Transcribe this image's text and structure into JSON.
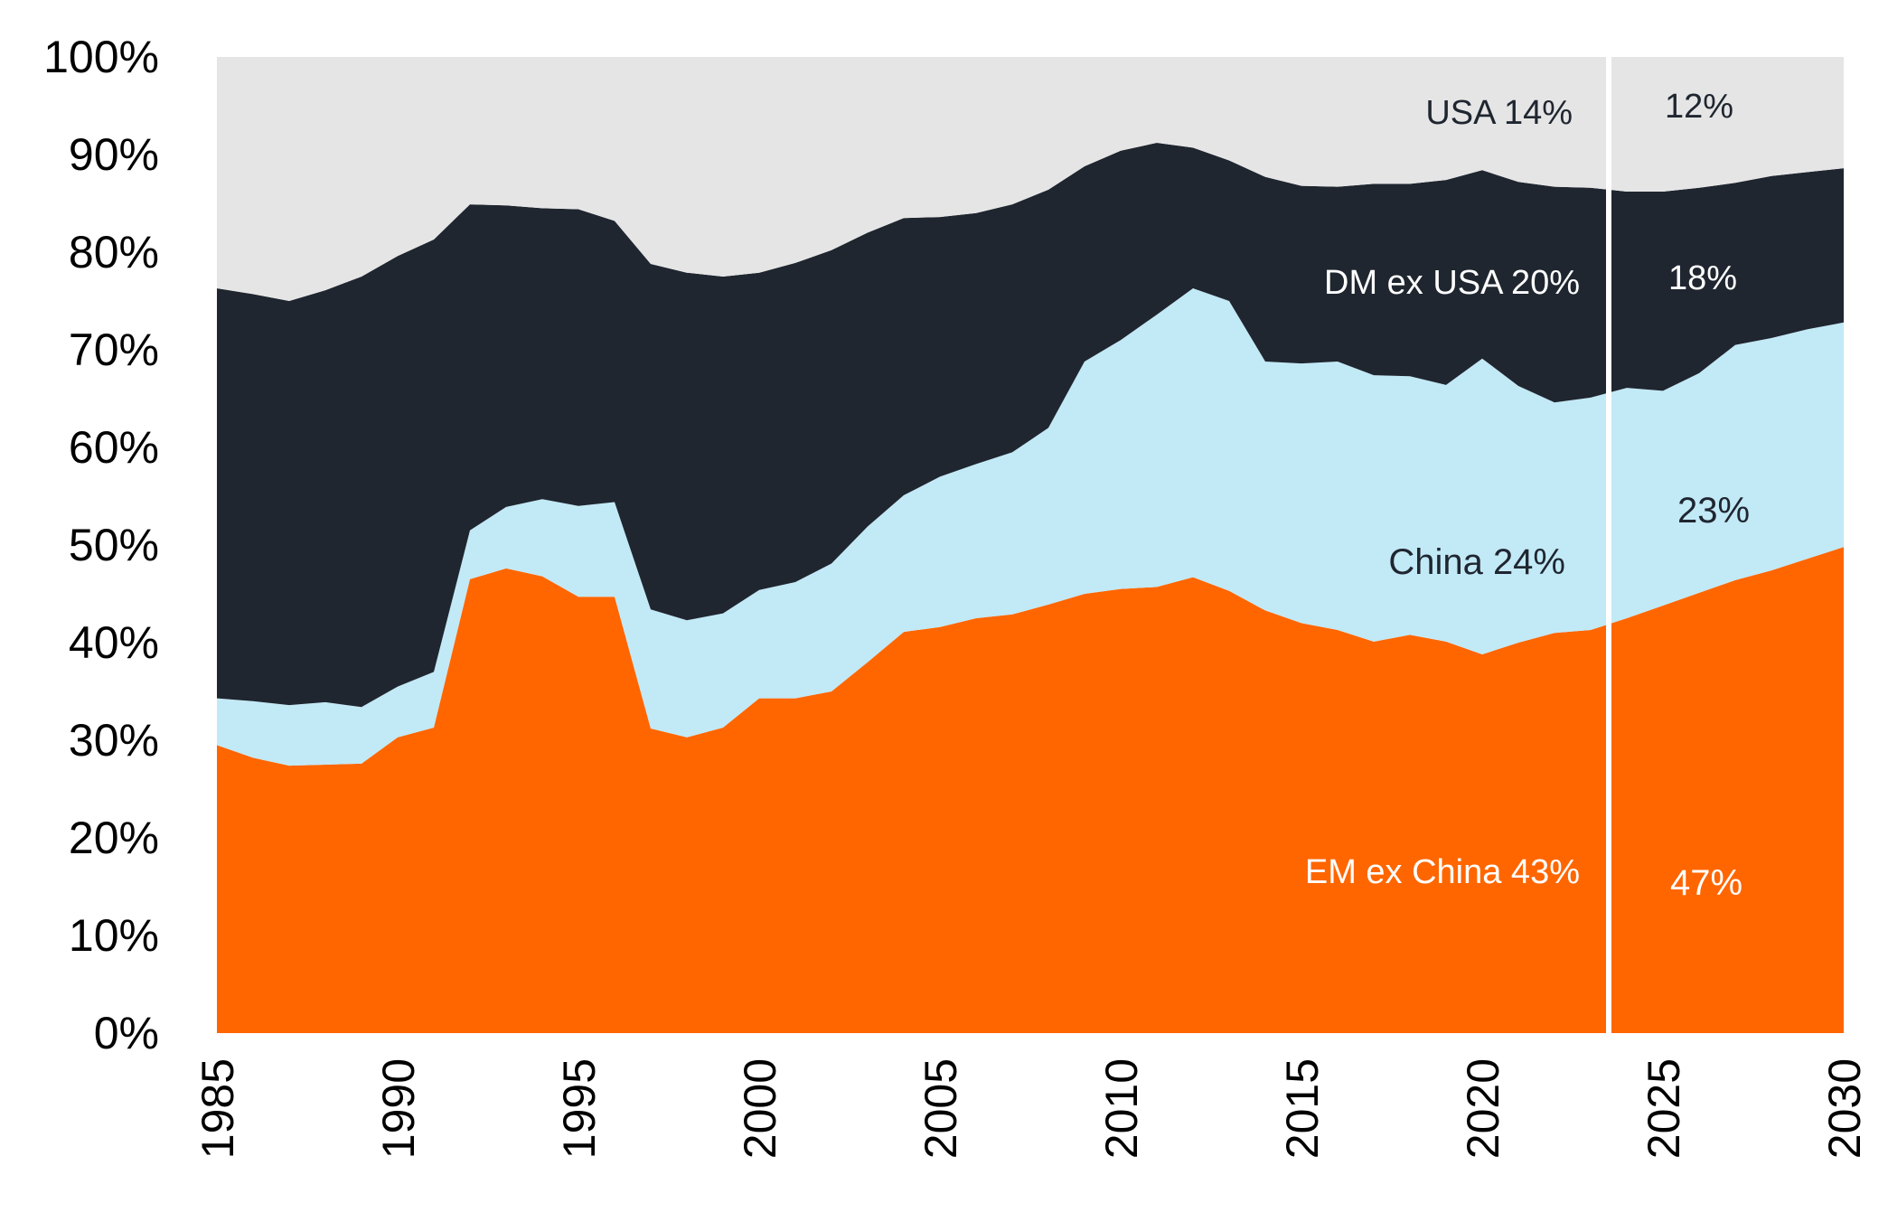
{
  "chart_data": {
    "type": "area",
    "stacked": true,
    "title": "",
    "xlabel": "",
    "ylabel": "",
    "xlim": [
      1985,
      2030
    ],
    "ylim": [
      0,
      100
    ],
    "y_ticks": [
      "0%",
      "10%",
      "20%",
      "30%",
      "40%",
      "50%",
      "60%",
      "70%",
      "80%",
      "90%",
      "100%"
    ],
    "x_ticks": [
      "1985",
      "1990",
      "1995",
      "2000",
      "2005",
      "2010",
      "2015",
      "2020",
      "2025",
      "2030"
    ],
    "forecast_divider_x": 2023.5,
    "x": [
      1985,
      1986,
      1987,
      1988,
      1989,
      1990,
      1991,
      1992,
      1993,
      1994,
      1995,
      1996,
      1997,
      1998,
      1999,
      2000,
      2001,
      2002,
      2003,
      2004,
      2005,
      2006,
      2007,
      2008,
      2009,
      2010,
      2011,
      2012,
      2013,
      2014,
      2015,
      2016,
      2017,
      2018,
      2019,
      2020,
      2021,
      2022,
      2023,
      2024,
      2025,
      2026,
      2027,
      2028,
      2029,
      2030
    ],
    "series": [
      {
        "name": "EM ex China",
        "color": "#ff6600",
        "values": [
          29.5,
          28.2,
          27.4,
          27.5,
          27.6,
          30.3,
          31.3,
          46.5,
          47.6,
          46.8,
          44.7,
          44.7,
          31.2,
          30.3,
          31.3,
          34.3,
          34.3,
          35.0,
          38.0,
          41.1,
          41.6,
          42.5,
          42.9,
          43.9,
          45.0,
          45.5,
          45.7,
          46.7,
          45.3,
          43.3,
          42.0,
          41.3,
          40.1,
          40.8,
          40.1,
          38.8,
          40.0,
          41.0,
          41.3,
          42.5,
          43.8,
          45.1,
          46.4,
          47.4,
          48.6,
          49.8
        ]
      },
      {
        "name": "China",
        "color": "#c2e9f6",
        "values": [
          4.8,
          5.8,
          6.2,
          6.4,
          5.8,
          5.2,
          5.7,
          5.0,
          6.3,
          7.9,
          9.3,
          9.7,
          12.2,
          12.0,
          11.7,
          11.1,
          11.9,
          13.1,
          13.9,
          14.0,
          15.4,
          15.8,
          16.6,
          18.1,
          23.8,
          25.5,
          27.9,
          29.6,
          29.7,
          25.5,
          26.6,
          27.5,
          27.3,
          26.5,
          26.3,
          30.3,
          26.3,
          23.6,
          23.8,
          23.6,
          22.0,
          22.5,
          24.1,
          23.8,
          23.5,
          23.0
        ]
      },
      {
        "name": "DM ex USA",
        "color": "#1f2630",
        "values": [
          42.0,
          41.7,
          41.4,
          42.2,
          44.1,
          44.1,
          44.3,
          33.4,
          30.9,
          29.8,
          30.4,
          28.8,
          35.4,
          35.6,
          34.5,
          32.5,
          32.7,
          32.1,
          30.1,
          28.4,
          26.6,
          25.7,
          25.4,
          24.4,
          20.0,
          19.4,
          17.6,
          14.4,
          14.4,
          18.9,
          18.2,
          17.9,
          19.6,
          19.7,
          21.0,
          19.3,
          20.9,
          22.1,
          21.5,
          20.1,
          20.4,
          19.0,
          16.6,
          16.6,
          16.1,
          15.8
        ]
      },
      {
        "name": "USA",
        "color": "#e5e5e5",
        "values": [
          23.7,
          24.3,
          25.0,
          23.9,
          22.5,
          20.4,
          18.7,
          15.1,
          15.2,
          15.5,
          15.6,
          16.8,
          21.2,
          22.1,
          22.5,
          22.1,
          21.1,
          19.8,
          18.0,
          16.5,
          16.4,
          16.0,
          15.1,
          13.6,
          11.2,
          9.6,
          8.8,
          9.3,
          10.6,
          12.3,
          13.2,
          13.3,
          13.0,
          13.0,
          12.6,
          11.6,
          12.8,
          13.3,
          13.4,
          13.8,
          13.8,
          13.4,
          12.9,
          12.2,
          11.8,
          11.4
        ]
      }
    ],
    "annotations": {
      "usa_hist": "USA 14%",
      "usa_proj": "12%",
      "dm_hist": "DM ex USA 20%",
      "dm_proj": "18%",
      "china_hist": "China 24%",
      "china_proj": "23%",
      "em_hist": "EM ex China 43%",
      "em_proj": "47%"
    }
  }
}
